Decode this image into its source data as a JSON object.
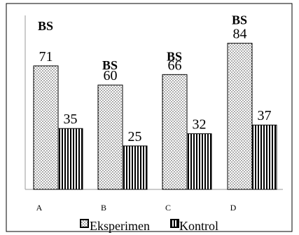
{
  "chart_data": {
    "type": "bar",
    "categories": [
      "A",
      "B",
      "C",
      "D"
    ],
    "series": [
      {
        "name": "Eksperimen",
        "values": [
          71,
          60,
          66,
          84
        ],
        "pattern": "dots"
      },
      {
        "name": "Kontrol",
        "values": [
          35,
          25,
          32,
          37
        ],
        "pattern": "vertical-stripes"
      }
    ],
    "annotations": [
      "BS",
      "BS",
      "BS",
      "BS"
    ],
    "ylim": [
      0,
      100
    ],
    "grid": false,
    "legend": "bottom"
  }
}
